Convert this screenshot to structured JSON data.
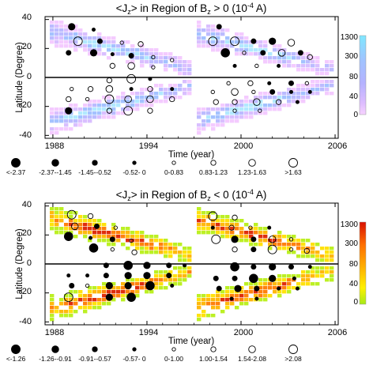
{
  "chart_data": [
    {
      "type": "heatmap",
      "title_parts": {
        "pre": "<J",
        "sub1": "z",
        "mid": "> in Region of B",
        "sub2": "z",
        "post": " > 0 (10",
        "sup": "-4",
        "end": " A)"
      },
      "xlabel": "Time (year)",
      "ylabel": "Latitude (Degree)",
      "xlim": [
        1987.5,
        2006.2
      ],
      "ylim": [
        -42,
        42
      ],
      "xticks": [
        "1988",
        "1994",
        "2000",
        "2006"
      ],
      "yticks": [
        "40",
        "20",
        "0",
        "-20",
        "-40"
      ],
      "colorbar": {
        "ticks": [
          "1300",
          "300",
          "80",
          "40",
          "0"
        ],
        "colors": [
          "#aee8ff",
          "#9fbfff",
          "#b7b7ff",
          "#d7bcff",
          "#f3c8ff"
        ]
      },
      "legend": [
        {
          "label": "<-2.37",
          "filled": true,
          "size": 5.5
        },
        {
          "label": "-2.37--1.45",
          "filled": true,
          "size": 4.3
        },
        {
          "label": "-1.45--0.52",
          "filled": true,
          "size": 3.2
        },
        {
          "label": "-0.52- 0",
          "filled": true,
          "size": 2.2
        },
        {
          "label": "0-0.83",
          "filled": false,
          "size": 2.2
        },
        {
          "label": "0.83-1.23",
          "filled": false,
          "size": 3.2
        },
        {
          "label": "1.23-1.63",
          "filled": false,
          "size": 4.3
        },
        {
          "label": ">1.63",
          "filled": false,
          "size": 5.5
        }
      ],
      "points": [
        {
          "x": 1989.2,
          "y": 35,
          "size": 4.3,
          "filled": true
        },
        {
          "x": 1990.6,
          "y": 33,
          "size": 2.2,
          "filled": true
        },
        {
          "x": 1989.6,
          "y": 25,
          "size": 5.5,
          "filled": false
        },
        {
          "x": 1991.0,
          "y": 25,
          "size": 3.2,
          "filled": true
        },
        {
          "x": 1992.4,
          "y": 24,
          "size": 2.2,
          "filled": false
        },
        {
          "x": 1993.6,
          "y": 23,
          "size": 3.2,
          "filled": false
        },
        {
          "x": 1989.0,
          "y": 17,
          "size": 3.2,
          "filled": true
        },
        {
          "x": 1990.6,
          "y": 17,
          "size": 4.3,
          "filled": true
        },
        {
          "x": 1991.8,
          "y": 16,
          "size": 2.2,
          "filled": true
        },
        {
          "x": 1993.0,
          "y": 15,
          "size": 3.2,
          "filled": true
        },
        {
          "x": 1994.4,
          "y": 14,
          "size": 2.2,
          "filled": false
        },
        {
          "x": 1995.6,
          "y": 12,
          "size": 2.2,
          "filled": false
        },
        {
          "x": 1991.8,
          "y": 8,
          "size": 3.2,
          "filled": false
        },
        {
          "x": 1993.0,
          "y": 8,
          "size": 4.3,
          "filled": false
        },
        {
          "x": 1994.4,
          "y": 7,
          "size": 2.2,
          "filled": false
        },
        {
          "x": 1998.6,
          "y": 35,
          "size": 3.2,
          "filled": true
        },
        {
          "x": 1998.2,
          "y": 25,
          "size": 5.5,
          "filled": false
        },
        {
          "x": 1999.6,
          "y": 25,
          "size": 5.5,
          "filled": false
        },
        {
          "x": 2000.8,
          "y": 25,
          "size": 3.2,
          "filled": true
        },
        {
          "x": 2002.0,
          "y": 25,
          "size": 4.3,
          "filled": true
        },
        {
          "x": 2003.2,
          "y": 24,
          "size": 4.3,
          "filled": false
        },
        {
          "x": 1999.0,
          "y": 17,
          "size": 5.5,
          "filled": true
        },
        {
          "x": 2000.2,
          "y": 17,
          "size": 2.2,
          "filled": false
        },
        {
          "x": 2001.4,
          "y": 17,
          "size": 3.2,
          "filled": true
        },
        {
          "x": 2002.6,
          "y": 17,
          "size": 4.3,
          "filled": false
        },
        {
          "x": 2003.8,
          "y": 17,
          "size": 3.2,
          "filled": true
        },
        {
          "x": 2004.4,
          "y": 14,
          "size": 3.2,
          "filled": false
        },
        {
          "x": 1999.6,
          "y": 8,
          "size": 2.2,
          "filled": true
        },
        {
          "x": 2001.0,
          "y": 8,
          "size": 2.2,
          "filled": false
        },
        {
          "x": 2002.4,
          "y": 8,
          "size": 2.2,
          "filled": true
        },
        {
          "x": 1991.6,
          "y": -2,
          "size": 3.2,
          "filled": false
        },
        {
          "x": 1993.0,
          "y": -1,
          "size": 5.5,
          "filled": false
        },
        {
          "x": 1994.2,
          "y": -1,
          "size": 2.2,
          "filled": true
        },
        {
          "x": 1989.2,
          "y": -8,
          "size": 2.2,
          "filled": false
        },
        {
          "x": 1990.4,
          "y": -8,
          "size": 3.2,
          "filled": false
        },
        {
          "x": 1991.6,
          "y": -8,
          "size": 4.3,
          "filled": false
        },
        {
          "x": 1993.0,
          "y": -8,
          "size": 2.2,
          "filled": true
        },
        {
          "x": 1994.2,
          "y": -8,
          "size": 3.2,
          "filled": false
        },
        {
          "x": 1995.6,
          "y": -8,
          "size": 2.2,
          "filled": true
        },
        {
          "x": 1989.0,
          "y": -15,
          "size": 3.2,
          "filled": false
        },
        {
          "x": 1990.2,
          "y": -15,
          "size": 2.2,
          "filled": false
        },
        {
          "x": 1991.6,
          "y": -15,
          "size": 5.5,
          "filled": false
        },
        {
          "x": 1992.8,
          "y": -15,
          "size": 4.3,
          "filled": false
        },
        {
          "x": 1994.2,
          "y": -15,
          "size": 4.3,
          "filled": false
        },
        {
          "x": 1995.6,
          "y": -15,
          "size": 3.2,
          "filled": false
        },
        {
          "x": 1989.0,
          "y": -23,
          "size": 4.3,
          "filled": true
        },
        {
          "x": 1991.6,
          "y": -23,
          "size": 3.2,
          "filled": false
        },
        {
          "x": 1992.8,
          "y": -23,
          "size": 5.5,
          "filled": false
        },
        {
          "x": 1994.2,
          "y": -23,
          "size": 3.2,
          "filled": false
        },
        {
          "x": 1999.2,
          "y": -4,
          "size": 2.2,
          "filled": false
        },
        {
          "x": 2000.6,
          "y": -4,
          "size": 3.2,
          "filled": false
        },
        {
          "x": 2001.8,
          "y": -4,
          "size": 2.2,
          "filled": true
        },
        {
          "x": 2003.2,
          "y": -4,
          "size": 3.2,
          "filled": true
        },
        {
          "x": 2004.2,
          "y": -4,
          "size": 2.2,
          "filled": false
        },
        {
          "x": 1998.2,
          "y": -10,
          "size": 2.2,
          "filled": false
        },
        {
          "x": 1999.6,
          "y": -10,
          "size": 4.3,
          "filled": false
        },
        {
          "x": 2000.8,
          "y": -10,
          "size": 2.2,
          "filled": false
        },
        {
          "x": 2002.0,
          "y": -10,
          "size": 3.2,
          "filled": true
        },
        {
          "x": 2003.2,
          "y": -10,
          "size": 2.2,
          "filled": true
        },
        {
          "x": 2004.4,
          "y": -10,
          "size": 2.2,
          "filled": true
        },
        {
          "x": 1998.4,
          "y": -17,
          "size": 3.2,
          "filled": false
        },
        {
          "x": 1999.6,
          "y": -17,
          "size": 3.2,
          "filled": false
        },
        {
          "x": 2001.0,
          "y": -17,
          "size": 4.3,
          "filled": false
        },
        {
          "x": 2002.4,
          "y": -17,
          "size": 3.2,
          "filled": false
        },
        {
          "x": 2003.6,
          "y": -17,
          "size": 2.2,
          "filled": true
        },
        {
          "x": 1999.6,
          "y": -23,
          "size": 2.2,
          "filled": false
        },
        {
          "x": 2001.2,
          "y": -23,
          "size": 2.2,
          "filled": false
        }
      ]
    },
    {
      "type": "heatmap",
      "title_parts": {
        "pre": "<J",
        "sub1": "z",
        "mid": "> in Region of B",
        "sub2": "z",
        "post": " < 0 (10",
        "sup": "-4",
        "end": " A)"
      },
      "xlabel": "Time (year)",
      "ylabel": "Latitude (Degree)",
      "xlim": [
        1987.5,
        2006.2
      ],
      "ylim": [
        -42,
        42
      ],
      "xticks": [
        "1988",
        "1994",
        "2000",
        "2006"
      ],
      "yticks": [
        "40",
        "20",
        "0",
        "-20",
        "-40"
      ],
      "colorbar": {
        "ticks": [
          "1300",
          "300",
          "80",
          "40",
          "0"
        ],
        "colors": [
          "#dd2200",
          "#ff7a00",
          "#ffb400",
          "#ffe000",
          "#b8ef18"
        ]
      },
      "legend": [
        {
          "label": "<-1.26",
          "filled": true,
          "size": 5.5
        },
        {
          "label": "-1.26--0.91",
          "filled": true,
          "size": 4.3
        },
        {
          "label": "-0.91--0.57",
          "filled": true,
          "size": 3.2
        },
        {
          "label": "-0.57- 0",
          "filled": true,
          "size": 2.2
        },
        {
          "label": "0-1.00",
          "filled": false,
          "size": 2.2
        },
        {
          "label": "1.00-1.54",
          "filled": false,
          "size": 3.2
        },
        {
          "label": "1.54-2.08",
          "filled": false,
          "size": 4.3
        },
        {
          "label": ">2.08",
          "filled": false,
          "size": 5.5
        }
      ],
      "points": [
        {
          "x": 1989.2,
          "y": 34,
          "size": 5.5,
          "filled": false
        },
        {
          "x": 1990.4,
          "y": 33,
          "size": 3.2,
          "filled": false
        },
        {
          "x": 1989.4,
          "y": 26,
          "size": 4.3,
          "filled": false
        },
        {
          "x": 1990.8,
          "y": 26,
          "size": 3.2,
          "filled": true
        },
        {
          "x": 1992.0,
          "y": 25,
          "size": 2.2,
          "filled": false
        },
        {
          "x": 1989.0,
          "y": 19,
          "size": 5.5,
          "filled": true
        },
        {
          "x": 1990.4,
          "y": 18,
          "size": 2.2,
          "filled": true
        },
        {
          "x": 1991.8,
          "y": 17,
          "size": 3.2,
          "filled": true
        },
        {
          "x": 1993.0,
          "y": 16,
          "size": 2.2,
          "filled": false
        },
        {
          "x": 1990.6,
          "y": 11,
          "size": 5.5,
          "filled": true
        },
        {
          "x": 1991.8,
          "y": 10,
          "size": 2.2,
          "filled": false
        },
        {
          "x": 1993.2,
          "y": 8,
          "size": 3.2,
          "filled": false
        },
        {
          "x": 1998.2,
          "y": 33,
          "size": 5.5,
          "filled": false
        },
        {
          "x": 1999.6,
          "y": 32,
          "size": 3.2,
          "filled": false
        },
        {
          "x": 1998.2,
          "y": 25,
          "size": 2.2,
          "filled": true
        },
        {
          "x": 1999.4,
          "y": 25,
          "size": 3.2,
          "filled": false
        },
        {
          "x": 2000.6,
          "y": 25,
          "size": 2.2,
          "filled": false
        },
        {
          "x": 2001.8,
          "y": 25,
          "size": 2.2,
          "filled": true
        },
        {
          "x": 1998.4,
          "y": 17,
          "size": 5.5,
          "filled": false
        },
        {
          "x": 1999.6,
          "y": 17,
          "size": 4.3,
          "filled": true
        },
        {
          "x": 2000.8,
          "y": 17,
          "size": 3.2,
          "filled": true
        },
        {
          "x": 2002.0,
          "y": 17,
          "size": 4.3,
          "filled": false
        },
        {
          "x": 2003.2,
          "y": 17,
          "size": 2.2,
          "filled": false
        },
        {
          "x": 1999.6,
          "y": 10,
          "size": 3.2,
          "filled": false
        },
        {
          "x": 2000.8,
          "y": 10,
          "size": 3.2,
          "filled": true
        },
        {
          "x": 2002.0,
          "y": 10,
          "size": 5.5,
          "filled": false
        },
        {
          "x": 2003.2,
          "y": 10,
          "size": 2.2,
          "filled": false
        },
        {
          "x": 2004.2,
          "y": 9,
          "size": 3.2,
          "filled": false
        },
        {
          "x": 1991.4,
          "y": -1,
          "size": 3.2,
          "filled": true
        },
        {
          "x": 1992.8,
          "y": -1,
          "size": 5.5,
          "filled": true
        },
        {
          "x": 1994.0,
          "y": -1,
          "size": 4.3,
          "filled": true
        },
        {
          "x": 1995.4,
          "y": -1,
          "size": 3.2,
          "filled": true
        },
        {
          "x": 1996.4,
          "y": -1,
          "size": 2.2,
          "filled": true
        },
        {
          "x": 1989.0,
          "y": -8,
          "size": 2.2,
          "filled": true
        },
        {
          "x": 1990.2,
          "y": -8,
          "size": 2.2,
          "filled": true
        },
        {
          "x": 1991.4,
          "y": -8,
          "size": 3.2,
          "filled": true
        },
        {
          "x": 1992.8,
          "y": -8,
          "size": 4.3,
          "filled": true
        },
        {
          "x": 1994.0,
          "y": -8,
          "size": 4.3,
          "filled": true
        },
        {
          "x": 1995.4,
          "y": -8,
          "size": 3.2,
          "filled": true
        },
        {
          "x": 1989.2,
          "y": -15,
          "size": 3.2,
          "filled": true
        },
        {
          "x": 1990.2,
          "y": -15,
          "size": 2.2,
          "filled": false
        },
        {
          "x": 1991.6,
          "y": -15,
          "size": 4.3,
          "filled": true
        },
        {
          "x": 1992.8,
          "y": -15,
          "size": 4.3,
          "filled": true
        },
        {
          "x": 1994.2,
          "y": -15,
          "size": 5.5,
          "filled": true
        },
        {
          "x": 1995.6,
          "y": -15,
          "size": 2.2,
          "filled": true
        },
        {
          "x": 1989.0,
          "y": -23,
          "size": 5.5,
          "filled": false
        },
        {
          "x": 1991.6,
          "y": -23,
          "size": 4.3,
          "filled": true
        },
        {
          "x": 1993.0,
          "y": -23,
          "size": 5.5,
          "filled": true
        },
        {
          "x": 1999.6,
          "y": -2,
          "size": 5.5,
          "filled": true
        },
        {
          "x": 2000.8,
          "y": -2,
          "size": 3.2,
          "filled": true
        },
        {
          "x": 2002.0,
          "y": -2,
          "size": 4.3,
          "filled": true
        },
        {
          "x": 2003.2,
          "y": -2,
          "size": 3.2,
          "filled": true
        },
        {
          "x": 2004.4,
          "y": -2,
          "size": 2.2,
          "filled": true
        },
        {
          "x": 1998.4,
          "y": -10,
          "size": 3.2,
          "filled": true
        },
        {
          "x": 1999.6,
          "y": -10,
          "size": 3.2,
          "filled": true
        },
        {
          "x": 2000.8,
          "y": -10,
          "size": 5.5,
          "filled": true
        },
        {
          "x": 2002.0,
          "y": -10,
          "size": 4.3,
          "filled": true
        },
        {
          "x": 2003.4,
          "y": -10,
          "size": 2.2,
          "filled": true
        },
        {
          "x": 1998.6,
          "y": -17,
          "size": 3.2,
          "filled": true
        },
        {
          "x": 1999.8,
          "y": -17,
          "size": 4.3,
          "filled": true
        },
        {
          "x": 2001.0,
          "y": -17,
          "size": 3.2,
          "filled": true
        },
        {
          "x": 2002.4,
          "y": -17,
          "size": 2.2,
          "filled": true
        },
        {
          "x": 2003.6,
          "y": -17,
          "size": 2.2,
          "filled": true
        },
        {
          "x": 1999.4,
          "y": -24,
          "size": 2.2,
          "filled": true
        },
        {
          "x": 2001.0,
          "y": -24,
          "size": 2.2,
          "filled": true
        }
      ]
    }
  ]
}
